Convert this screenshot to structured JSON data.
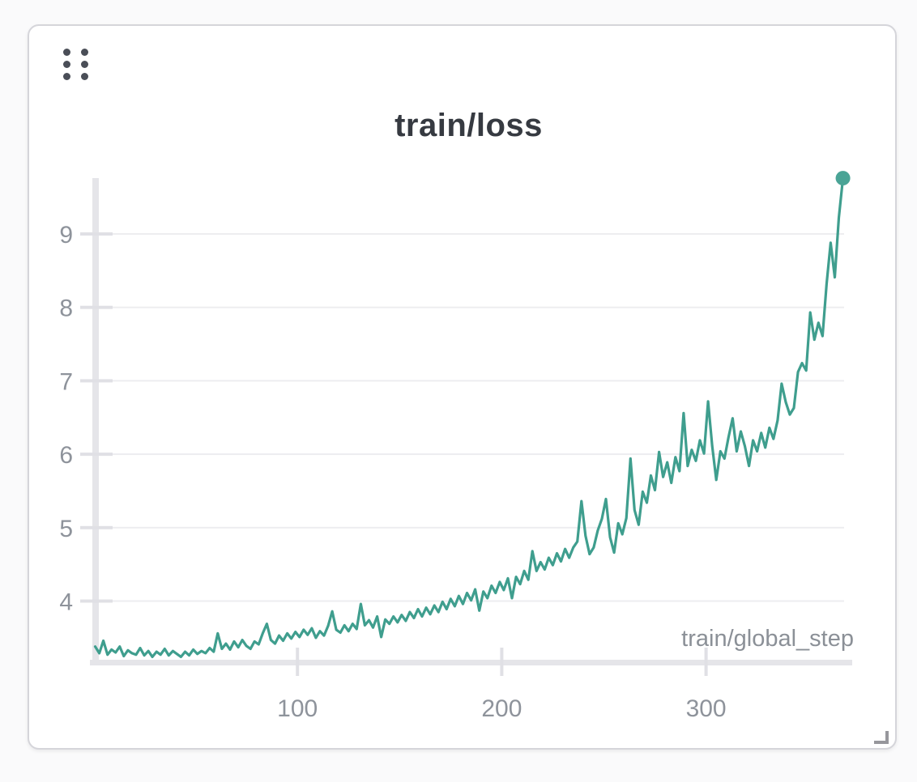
{
  "panel": {
    "drag_handle_icon": "grip-dots-6",
    "resize_handle_icon": "resize-corner-bracket"
  },
  "colors": {
    "line": "#3f9e8e",
    "endpoint_dot": "#4aa496",
    "gridline": "#ededf0",
    "axis_bar": "#e5e5e9",
    "tick": "#e0e0e5",
    "tick_label": "#8e939b",
    "axis_label": "#8b9097",
    "title": "#363a41",
    "card_border": "#d5d5da",
    "drag_dots": "#4a4e57",
    "resize_handle": "#97979c"
  },
  "chart_data": {
    "type": "line",
    "title": "train/loss",
    "xlabel": "train/global_step",
    "ylabel": "",
    "x_ticks": [
      100,
      200,
      300
    ],
    "y_ticks": [
      4,
      5,
      6,
      7,
      8,
      9
    ],
    "xlim": [
      0,
      372
    ],
    "ylim": [
      3.17,
      9.8
    ],
    "grid": "horizontal",
    "legend": "none",
    "endpoint_marker": true,
    "series": [
      {
        "name": "train/loss",
        "x": [
          1,
          3,
          5,
          7,
          9,
          11,
          13,
          15,
          17,
          19,
          21,
          23,
          25,
          27,
          29,
          31,
          33,
          35,
          37,
          39,
          41,
          43,
          45,
          47,
          49,
          51,
          53,
          55,
          57,
          59,
          61,
          63,
          65,
          67,
          69,
          71,
          73,
          75,
          77,
          79,
          81,
          83,
          85,
          87,
          89,
          91,
          93,
          95,
          97,
          99,
          101,
          103,
          105,
          107,
          109,
          111,
          113,
          115,
          117,
          119,
          121,
          123,
          125,
          127,
          129,
          131,
          133,
          135,
          137,
          139,
          141,
          143,
          145,
          147,
          149,
          151,
          153,
          155,
          157,
          159,
          161,
          163,
          165,
          167,
          169,
          171,
          173,
          175,
          177,
          179,
          181,
          183,
          185,
          187,
          189,
          191,
          193,
          195,
          197,
          199,
          201,
          203,
          205,
          207,
          209,
          211,
          213,
          215,
          217,
          219,
          221,
          223,
          225,
          227,
          229,
          231,
          233,
          235,
          237,
          239,
          241,
          243,
          245,
          247,
          249,
          251,
          253,
          255,
          257,
          259,
          261,
          263,
          265,
          267,
          269,
          271,
          273,
          275,
          277,
          279,
          281,
          283,
          285,
          287,
          289,
          291,
          293,
          295,
          297,
          299,
          301,
          303,
          305,
          307,
          309,
          311,
          313,
          315,
          317,
          319,
          321,
          323,
          325,
          327,
          329,
          331,
          333,
          335,
          337,
          339,
          341,
          343,
          345,
          347,
          349,
          351,
          353,
          355,
          357,
          359,
          361,
          363,
          365,
          367
        ],
        "y": [
          3.38,
          3.29,
          3.46,
          3.27,
          3.34,
          3.3,
          3.38,
          3.25,
          3.33,
          3.29,
          3.27,
          3.36,
          3.26,
          3.32,
          3.24,
          3.31,
          3.27,
          3.35,
          3.26,
          3.32,
          3.28,
          3.24,
          3.31,
          3.26,
          3.34,
          3.28,
          3.32,
          3.29,
          3.36,
          3.31,
          3.56,
          3.35,
          3.42,
          3.34,
          3.45,
          3.37,
          3.47,
          3.39,
          3.35,
          3.45,
          3.41,
          3.56,
          3.69,
          3.47,
          3.42,
          3.53,
          3.46,
          3.56,
          3.49,
          3.58,
          3.51,
          3.61,
          3.54,
          3.63,
          3.5,
          3.59,
          3.53,
          3.66,
          3.86,
          3.61,
          3.57,
          3.67,
          3.59,
          3.69,
          3.62,
          3.96,
          3.67,
          3.74,
          3.64,
          3.79,
          3.51,
          3.75,
          3.69,
          3.79,
          3.71,
          3.81,
          3.73,
          3.85,
          3.77,
          3.89,
          3.79,
          3.91,
          3.82,
          3.94,
          3.85,
          3.99,
          3.89,
          4.03,
          3.93,
          4.07,
          3.96,
          4.11,
          4.01,
          4.16,
          3.87,
          4.13,
          4.04,
          4.21,
          4.11,
          4.26,
          4.15,
          4.31,
          4.04,
          4.33,
          4.23,
          4.41,
          4.29,
          4.68,
          4.41,
          4.53,
          4.43,
          4.59,
          4.49,
          4.65,
          4.54,
          4.71,
          4.59,
          4.73,
          4.81,
          5.36,
          4.89,
          4.64,
          4.73,
          4.96,
          5.12,
          5.39,
          4.87,
          4.66,
          5.06,
          4.91,
          5.13,
          5.94,
          5.24,
          5.04,
          5.49,
          5.34,
          5.71,
          5.51,
          6.03,
          5.69,
          5.89,
          5.61,
          5.96,
          5.77,
          6.56,
          5.84,
          6.06,
          5.91,
          6.19,
          6.01,
          6.72,
          6.11,
          5.65,
          6.04,
          5.94,
          6.23,
          6.49,
          6.04,
          6.31,
          6.11,
          5.84,
          6.19,
          6.04,
          6.29,
          6.09,
          6.36,
          6.21,
          6.46,
          6.96,
          6.71,
          6.54,
          6.63,
          7.12,
          7.24,
          7.14,
          7.93,
          7.56,
          7.79,
          7.61,
          8.32,
          8.88,
          8.41,
          9.22,
          9.76
        ]
      }
    ]
  }
}
